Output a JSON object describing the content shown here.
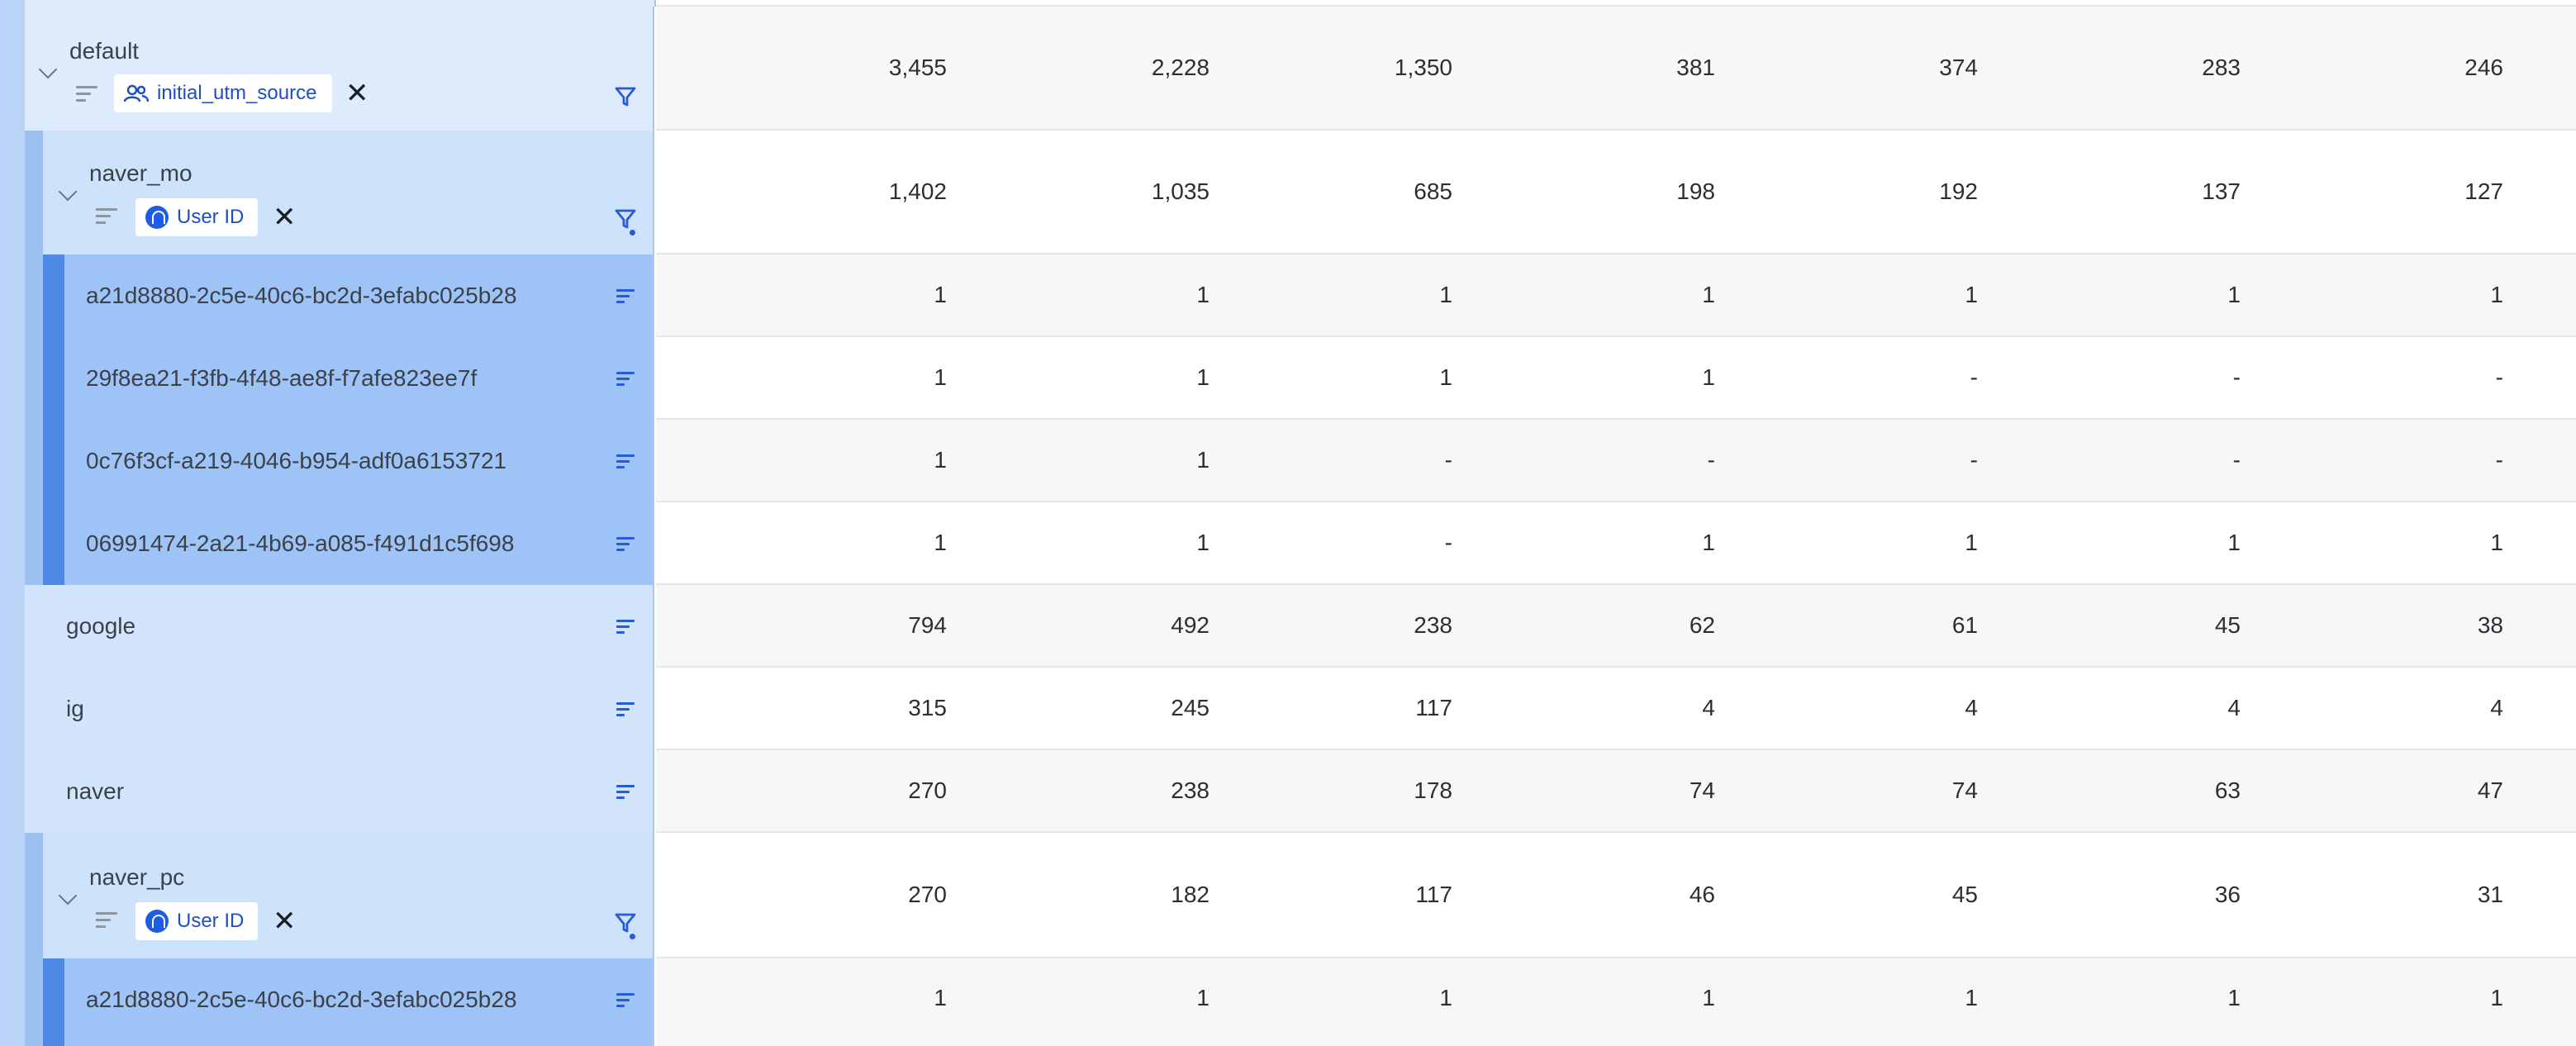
{
  "group_rows": [
    {
      "label": "default",
      "chip_label": "initial_utm_source",
      "chip_icon": "users-icon",
      "values": [
        "3,455",
        "2,228",
        "1,350",
        "381",
        "374",
        "283",
        "246"
      ]
    },
    {
      "label": "naver_mo",
      "chip_label": "User ID",
      "chip_icon": "amplitude-logo-icon",
      "values": [
        "1,402",
        "1,035",
        "685",
        "198",
        "192",
        "137",
        "127"
      ]
    },
    {
      "label": "naver_pc",
      "chip_label": "User ID",
      "chip_icon": "amplitude-logo-icon",
      "values": [
        "270",
        "182",
        "117",
        "46",
        "45",
        "36",
        "31"
      ]
    }
  ],
  "leaf_rows": [
    {
      "label": "a21d8880-2c5e-40c6-bc2d-3efabc025b28",
      "values": [
        "1",
        "1",
        "1",
        "1",
        "1",
        "1",
        "1"
      ]
    },
    {
      "label": "29f8ea21-f3fb-4f48-ae8f-f7afe823ee7f",
      "values": [
        "1",
        "1",
        "1",
        "1",
        "-",
        "-",
        "-"
      ]
    },
    {
      "label": "0c76f3cf-a219-4046-b954-adf0a6153721",
      "values": [
        "1",
        "1",
        "-",
        "-",
        "-",
        "-",
        "-"
      ]
    },
    {
      "label": "06991474-2a21-4b69-a085-f491d1c5f698",
      "values": [
        "1",
        "1",
        "-",
        "1",
        "1",
        "1",
        "1"
      ]
    },
    {
      "label": "a21d8880-2c5e-40c6-bc2d-3efabc025b28",
      "values": [
        "1",
        "1",
        "1",
        "1",
        "1",
        "1",
        "1"
      ]
    }
  ],
  "child_rows": [
    {
      "label": "google",
      "values": [
        "794",
        "492",
        "238",
        "62",
        "61",
        "45",
        "38"
      ]
    },
    {
      "label": "ig",
      "values": [
        "315",
        "245",
        "117",
        "4",
        "4",
        "4",
        "4"
      ]
    },
    {
      "label": "naver",
      "values": [
        "270",
        "238",
        "178",
        "74",
        "74",
        "63",
        "47"
      ]
    }
  ],
  "colors": {
    "accent": "#2a5bd7",
    "leaf_bar": "#4f8ae6",
    "leaf_bg": "#9ec3f6",
    "group_bg": "#ddebfd"
  }
}
